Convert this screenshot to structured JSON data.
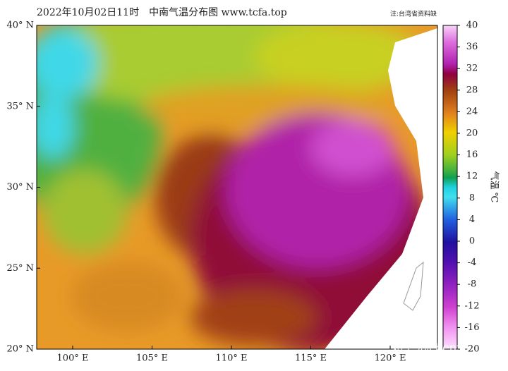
{
  "header": {
    "title": "2022年10月02日11时　中南气温分布图 www.tcfa.top",
    "note": "注:台湾省资料缺"
  },
  "map": {
    "lat_ticks": [
      {
        "value": 40,
        "label": "40° N"
      },
      {
        "value": 35,
        "label": "35° N"
      },
      {
        "value": 30,
        "label": "30° N"
      },
      {
        "value": 25,
        "label": "25° N"
      },
      {
        "value": 20,
        "label": "20° N"
      }
    ],
    "lon_ticks": [
      {
        "value": 100,
        "label": "100° E"
      },
      {
        "value": 105,
        "label": "105° E"
      },
      {
        "value": 110,
        "label": "110° E"
      },
      {
        "value": 115,
        "label": "115° E"
      },
      {
        "value": 120,
        "label": "120° E"
      }
    ]
  },
  "colorbar": {
    "label": "气温 ℃",
    "lim": [
      -20,
      40
    ],
    "ticks": [
      40,
      36,
      32,
      28,
      24,
      20,
      16,
      12,
      8,
      4,
      0,
      -4,
      -8,
      -12,
      -16,
      -20
    ]
  },
  "watermark": "知乎 @chenzhe"
}
